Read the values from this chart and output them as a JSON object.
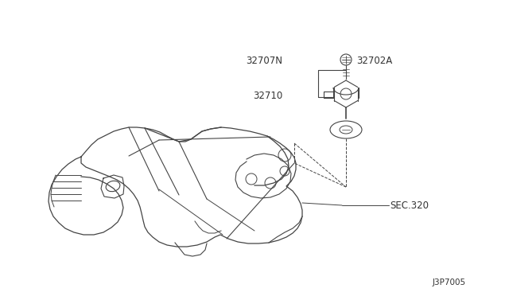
{
  "bg_color": "#ffffff",
  "line_color": "#444444",
  "label_color": "#333333",
  "label_32707N": "32707N",
  "label_32702A": "32702A",
  "label_32710": "32710",
  "label_sec": "SEC.320",
  "diagram_number": "J3P7005"
}
